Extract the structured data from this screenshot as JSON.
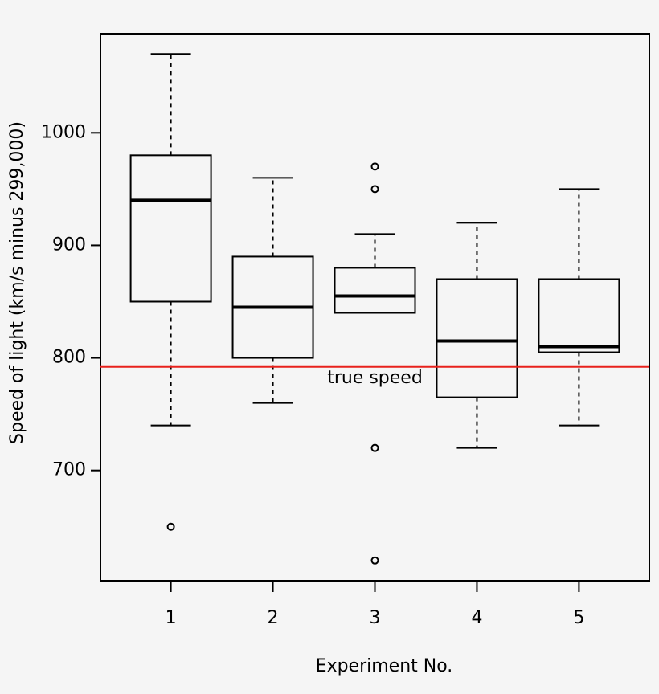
{
  "chart_data": {
    "type": "box",
    "x_label": "Experiment No.",
    "y_label": "Speed of light (km/s minus 299,000)",
    "categories": [
      "1",
      "2",
      "3",
      "4",
      "5"
    ],
    "boxes": [
      {
        "whislo": 740,
        "q1": 850,
        "median": 940,
        "q3": 980,
        "whishi": 1070,
        "outliers": [
          650
        ]
      },
      {
        "whislo": 760,
        "q1": 800,
        "median": 845,
        "q3": 890,
        "whishi": 960,
        "outliers": []
      },
      {
        "whislo": 840,
        "q1": 840,
        "median": 855,
        "q3": 880,
        "whishi": 910,
        "outliers": [
          970,
          950,
          720,
          620
        ]
      },
      {
        "whislo": 720,
        "q1": 765,
        "median": 815,
        "q3": 870,
        "whishi": 920,
        "outliers": []
      },
      {
        "whislo": 740,
        "q1": 805,
        "median": 810,
        "q3": 870,
        "whishi": 950,
        "outliers": []
      }
    ],
    "color": "#000000",
    "reference_line": {
      "value": 792,
      "label": "true speed",
      "color": "#e8211c"
    },
    "ylim": [
      602,
      1088
    ],
    "yticks": [
      700,
      800,
      900,
      1000
    ]
  }
}
